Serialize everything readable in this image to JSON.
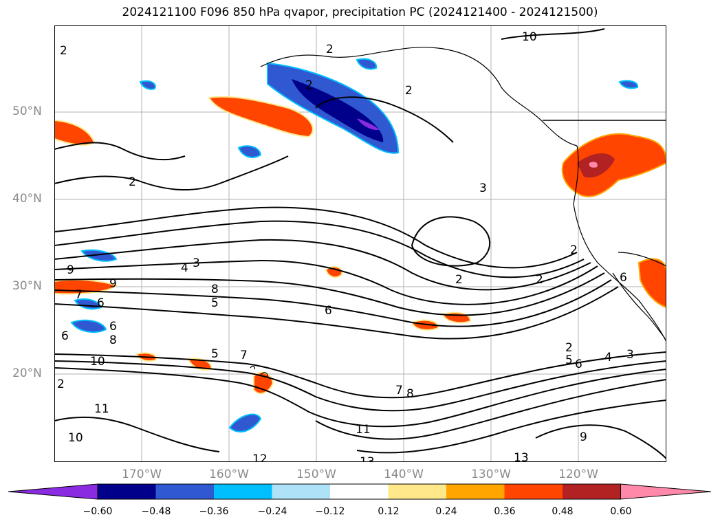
{
  "title": "2024121100 F096 850 hPa qvapor, precipitation PC (2024121400 - 2024121500)",
  "lat_labels": [
    "50°N",
    "40°N",
    "30°N",
    "20°N"
  ],
  "lon_labels": [
    "170°W",
    "160°W",
    "150°W",
    "140°W",
    "130°W",
    "120°W"
  ],
  "colorbar": {
    "ticks": [
      "−0.60",
      "−0.48",
      "−0.36",
      "−0.24",
      "−0.12",
      "0.12",
      "0.24",
      "0.36",
      "0.48",
      "0.60"
    ],
    "colors": [
      "#8a2be2",
      "#00008b",
      "#3058d0",
      "#00bfff",
      "#aee2f8",
      "#ffffff",
      "#ffe88a",
      "#ffa500",
      "#ff4500",
      "#b22222",
      "#ff89a8"
    ]
  },
  "contour_labels": [
    "10",
    "2",
    "2",
    "2",
    "2",
    "2",
    "2",
    "3",
    "2",
    "4",
    "3",
    "9",
    "9",
    "7",
    "6",
    "8",
    "5",
    "6",
    "6",
    "6",
    "8",
    "10",
    "5",
    "7",
    "2",
    "11",
    "10",
    "12",
    "13",
    "11",
    "7",
    "8",
    "2",
    "5",
    "6",
    "4",
    "3",
    "9",
    "13",
    "2",
    "6"
  ],
  "map_colors": {
    "ocean": "#ffffff",
    "contour": "#000000",
    "grid": "#b0b0b0",
    "coast": "#000000"
  }
}
